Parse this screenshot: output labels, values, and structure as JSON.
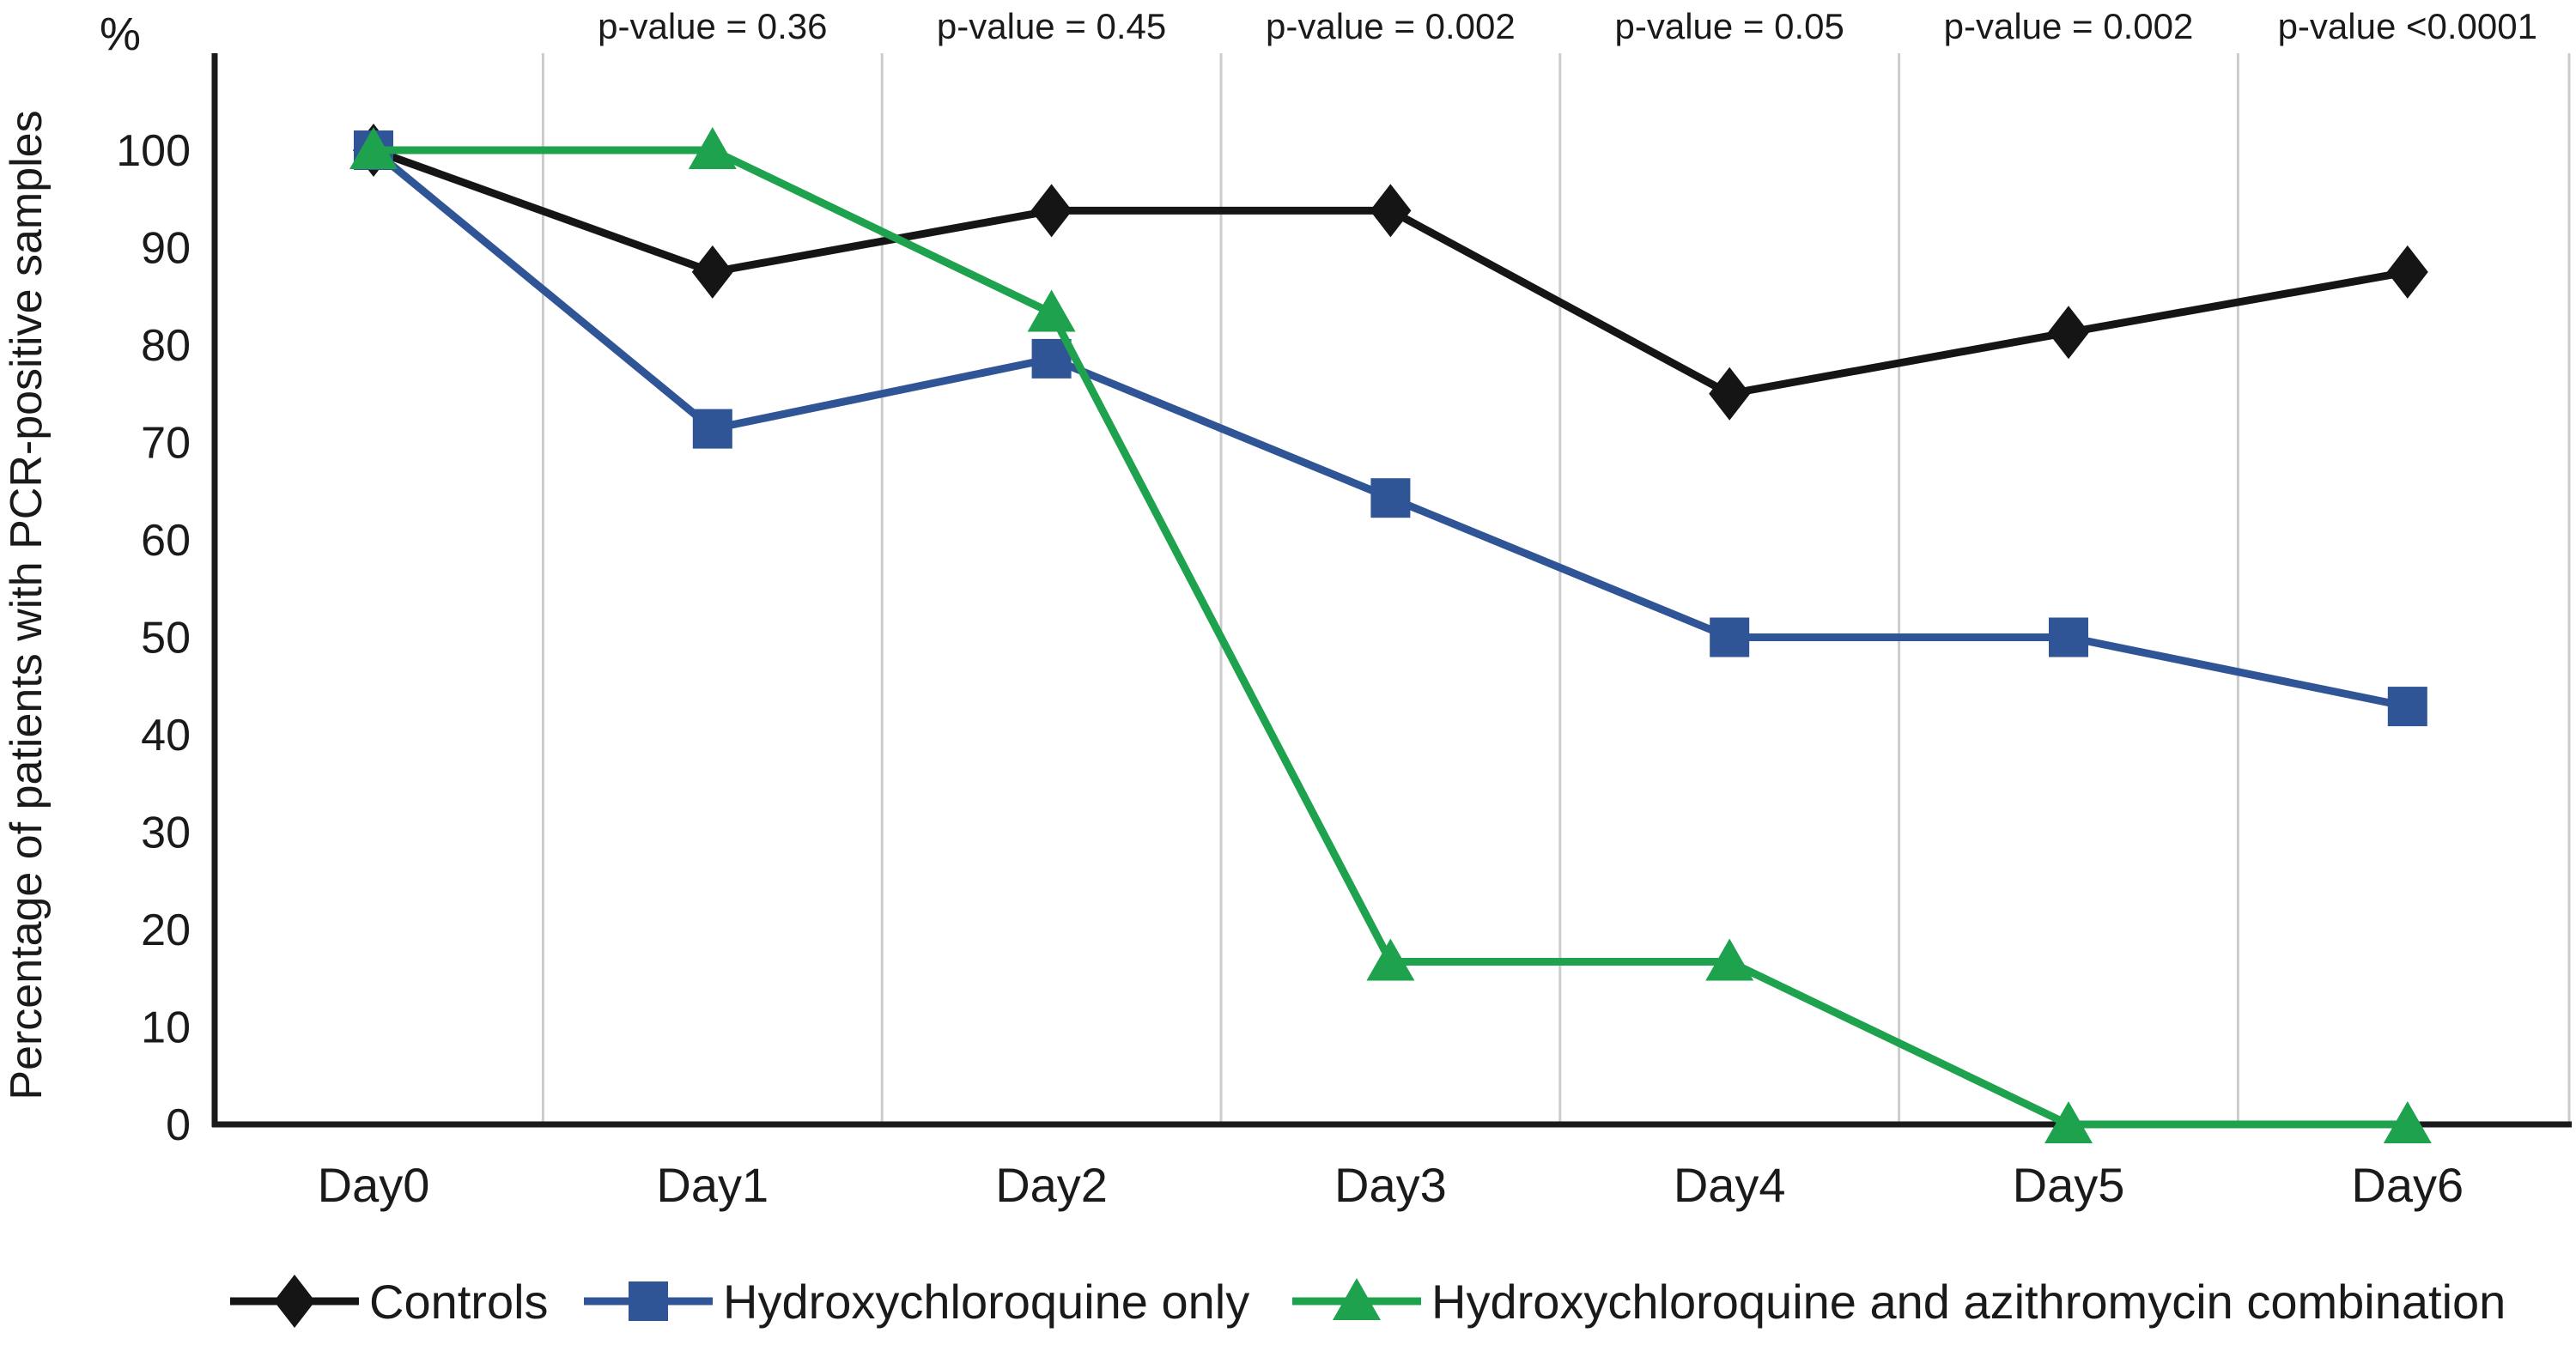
{
  "chart_data": {
    "type": "line",
    "percent_symbol": "%",
    "ylabel": "Percentage of patients with PCR-positive samples",
    "xlabel": "",
    "categories": [
      "Day0",
      "Day1",
      "Day2",
      "Day3",
      "Day4",
      "Day5",
      "Day6"
    ],
    "ylim": [
      0,
      100
    ],
    "yticks": [
      0,
      10,
      20,
      30,
      40,
      50,
      60,
      70,
      80,
      90,
      100
    ],
    "grid": "vertical-between-categories",
    "gridline_color": "#cccccc",
    "axis_color": "#1a1a1a",
    "legend_position": "bottom",
    "p_values": [
      {
        "category": "Day1",
        "label": "p-value = 0.36"
      },
      {
        "category": "Day2",
        "label": "p-value = 0.45"
      },
      {
        "category": "Day3",
        "label": "p-value = 0.002"
      },
      {
        "category": "Day4",
        "label": "p-value = 0.05"
      },
      {
        "category": "Day5",
        "label": "p-value = 0.002"
      },
      {
        "category": "Day6",
        "label": "p-value <0.0001"
      }
    ],
    "series": [
      {
        "name": "Controls",
        "marker": "diamond",
        "color": "#151515",
        "values": [
          100,
          87.5,
          93.8,
          93.8,
          75,
          81.3,
          87.5
        ]
      },
      {
        "name": "Hydroxychloroquine only",
        "marker": "square",
        "color": "#2F5597",
        "values": [
          100,
          71.4,
          78.6,
          64.3,
          50,
          50,
          42.9
        ]
      },
      {
        "name": "Hydroxychloroquine and azithromycin combination",
        "marker": "triangle",
        "color": "#1FA24E",
        "values": [
          100,
          100,
          83.3,
          16.7,
          16.7,
          0,
          0
        ]
      }
    ]
  }
}
